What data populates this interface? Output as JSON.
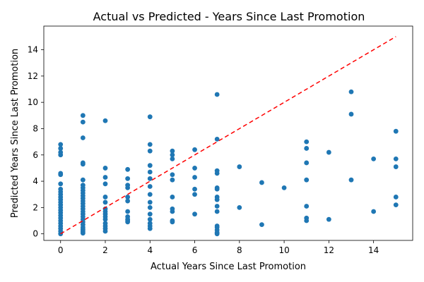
{
  "chart_data": {
    "type": "scatter",
    "title": "Actual vs Predicted - Years Since Last Promotion",
    "xlabel": "Actual Years Since Last Promotion",
    "ylabel": "Predicted Years Since Last Promotion",
    "xlim": [
      -0.75,
      15.75
    ],
    "ylim": [
      -0.5,
      15.8
    ],
    "xticks": [
      0,
      2,
      4,
      6,
      8,
      10,
      12,
      14
    ],
    "yticks": [
      0,
      2,
      4,
      6,
      8,
      10,
      12,
      14
    ],
    "grid": false,
    "point_color": "#1f77b4",
    "reference_line": {
      "from": [
        0,
        0
      ],
      "to": [
        15,
        15
      ],
      "color": "#ff0000",
      "style": "dashed"
    },
    "points": [
      [
        0,
        0.0
      ],
      [
        0,
        0.2
      ],
      [
        0,
        0.4
      ],
      [
        0,
        0.6
      ],
      [
        0,
        0.8
      ],
      [
        0,
        1.0
      ],
      [
        0,
        1.2
      ],
      [
        0,
        1.4
      ],
      [
        0,
        1.6
      ],
      [
        0,
        1.8
      ],
      [
        0,
        2.0
      ],
      [
        0,
        2.2
      ],
      [
        0,
        2.4
      ],
      [
        0,
        2.6
      ],
      [
        0,
        2.8
      ],
      [
        0,
        3.0
      ],
      [
        0,
        3.2
      ],
      [
        0,
        3.4
      ],
      [
        0,
        3.8
      ],
      [
        0,
        4.5
      ],
      [
        0,
        4.6
      ],
      [
        0,
        6.0
      ],
      [
        0,
        6.2
      ],
      [
        0,
        6.5
      ],
      [
        0,
        6.8
      ],
      [
        1,
        0.05
      ],
      [
        1,
        0.15
      ],
      [
        1,
        0.25
      ],
      [
        1,
        0.35
      ],
      [
        1,
        0.5
      ],
      [
        1,
        0.7
      ],
      [
        1,
        0.9
      ],
      [
        1,
        1.1
      ],
      [
        1,
        1.3
      ],
      [
        1,
        1.5
      ],
      [
        1,
        1.7
      ],
      [
        1,
        1.9
      ],
      [
        1,
        2.1
      ],
      [
        1,
        2.3
      ],
      [
        1,
        2.5
      ],
      [
        1,
        2.7
      ],
      [
        1,
        2.9
      ],
      [
        1,
        3.1
      ],
      [
        1,
        3.3
      ],
      [
        1,
        3.5
      ],
      [
        1,
        3.7
      ],
      [
        1,
        4.1
      ],
      [
        1,
        5.3
      ],
      [
        1,
        5.4
      ],
      [
        1,
        7.3
      ],
      [
        1,
        8.5
      ],
      [
        1,
        9.0
      ],
      [
        2,
        0.2
      ],
      [
        2,
        0.4
      ],
      [
        2,
        0.6
      ],
      [
        2,
        0.8
      ],
      [
        2,
        1.1
      ],
      [
        2,
        1.3
      ],
      [
        2,
        1.5
      ],
      [
        2,
        1.7
      ],
      [
        2,
        1.9
      ],
      [
        2,
        2.4
      ],
      [
        2,
        2.8
      ],
      [
        2,
        3.8
      ],
      [
        2,
        4.3
      ],
      [
        2,
        5.0
      ],
      [
        2,
        8.6
      ],
      [
        3,
        0.9
      ],
      [
        3,
        1.0
      ],
      [
        3,
        1.1
      ],
      [
        3,
        1.3
      ],
      [
        3,
        1.7
      ],
      [
        3,
        2.5
      ],
      [
        3,
        2.8
      ],
      [
        3,
        3.5
      ],
      [
        3,
        3.7
      ],
      [
        3,
        4.2
      ],
      [
        3,
        4.9
      ],
      [
        4,
        0.4
      ],
      [
        4,
        0.6
      ],
      [
        4,
        0.8
      ],
      [
        4,
        1.1
      ],
      [
        4,
        1.5
      ],
      [
        4,
        2.0
      ],
      [
        4,
        2.4
      ],
      [
        4,
        3.0
      ],
      [
        4,
        3.6
      ],
      [
        4,
        4.2
      ],
      [
        4,
        4.7
      ],
      [
        4,
        5.2
      ],
      [
        4,
        6.3
      ],
      [
        4,
        6.8
      ],
      [
        4,
        8.9
      ],
      [
        5,
        0.9
      ],
      [
        5,
        1.0
      ],
      [
        5,
        1.7
      ],
      [
        5,
        1.9
      ],
      [
        5,
        2.8
      ],
      [
        5,
        4.1
      ],
      [
        5,
        4.5
      ],
      [
        5,
        5.7
      ],
      [
        5,
        6.0
      ],
      [
        5,
        6.3
      ],
      [
        6,
        1.5
      ],
      [
        6,
        3.0
      ],
      [
        6,
        3.4
      ],
      [
        6,
        4.3
      ],
      [
        6,
        5.0
      ],
      [
        6,
        6.4
      ],
      [
        7,
        0.0
      ],
      [
        7,
        0.1
      ],
      [
        7,
        0.3
      ],
      [
        7,
        0.5
      ],
      [
        7,
        0.6
      ],
      [
        7,
        1.7
      ],
      [
        7,
        2.1
      ],
      [
        7,
        2.6
      ],
      [
        7,
        2.8
      ],
      [
        7,
        3.4
      ],
      [
        7,
        3.5
      ],
      [
        7,
        4.6
      ],
      [
        7,
        4.8
      ],
      [
        7,
        7.2
      ],
      [
        7,
        10.6
      ],
      [
        8,
        2.0
      ],
      [
        8,
        5.1
      ],
      [
        9,
        0.7
      ],
      [
        9,
        3.9
      ],
      [
        10,
        3.5
      ],
      [
        11,
        1.0
      ],
      [
        11,
        1.2
      ],
      [
        11,
        2.1
      ],
      [
        11,
        4.1
      ],
      [
        11,
        5.4
      ],
      [
        11,
        6.5
      ],
      [
        11,
        7.0
      ],
      [
        12,
        1.1
      ],
      [
        12,
        6.2
      ],
      [
        13,
        4.1
      ],
      [
        13,
        9.1
      ],
      [
        13,
        10.8
      ],
      [
        14,
        1.7
      ],
      [
        14,
        5.7
      ],
      [
        15,
        2.2
      ],
      [
        15,
        2.8
      ],
      [
        15,
        5.1
      ],
      [
        15,
        5.7
      ],
      [
        15,
        7.8
      ]
    ]
  }
}
